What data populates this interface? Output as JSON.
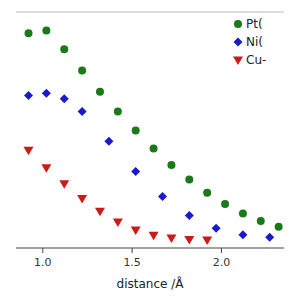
{
  "chart_data": {
    "type": "scatter",
    "x_label": "distance /Å",
    "xlim": [
      0.85,
      2.35
    ],
    "xticks": [
      {
        "value": 1,
        "label": "1.0"
      },
      {
        "value": 1.5,
        "label": "1.5"
      },
      {
        "value": 2,
        "label": "2.0"
      }
    ],
    "ylim": [
      -0.19,
      4.25
    ],
    "tick_labels": "x",
    "legend": "upper right",
    "series": [
      {
        "name": "Pt(",
        "color": "#1a7a1a",
        "marker": "circle",
        "x": [
          0.92,
          1.02,
          1.12,
          1.22,
          1.32,
          1.42,
          1.52,
          1.62,
          1.72,
          1.82,
          1.92,
          2.02,
          2.12,
          2.22,
          2.32
        ],
        "values": [
          3.85,
          3.9,
          3.55,
          3.15,
          2.75,
          2.38,
          2.02,
          1.68,
          1.37,
          1.1,
          0.85,
          0.64,
          0.46,
          0.32,
          0.21
        ]
      },
      {
        "name": "Ni(",
        "color": "#1a1acc",
        "marker": "diamond",
        "x": [
          0.92,
          1.02,
          1.12,
          1.22,
          1.37,
          1.52,
          1.67,
          1.82,
          1.97,
          2.12,
          2.27
        ],
        "values": [
          2.68,
          2.72,
          2.62,
          2.38,
          1.82,
          1.25,
          0.78,
          0.42,
          0.18,
          0.06,
          0.01
        ]
      },
      {
        "name": "Cu-",
        "color": "#cc1a1a",
        "marker": "triangle-down",
        "x": [
          0.92,
          1.02,
          1.12,
          1.22,
          1.32,
          1.42,
          1.52,
          1.62,
          1.72,
          1.82,
          1.92
        ],
        "values": [
          1.65,
          1.32,
          1.02,
          0.74,
          0.5,
          0.3,
          0.15,
          0.05,
          0.0,
          -0.03,
          -0.04
        ]
      }
    ]
  }
}
